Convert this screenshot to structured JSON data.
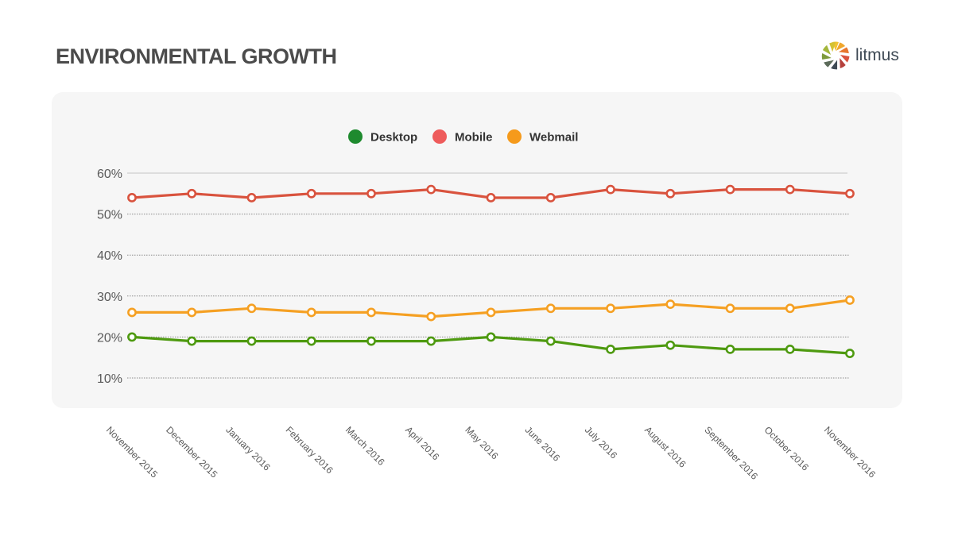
{
  "header": {
    "title": "ENVIRONMENTAL GROWTH"
  },
  "brand": {
    "name": "litmus",
    "logo_icon": "litmus-wheel-logo"
  },
  "chart_data": {
    "type": "line",
    "title": "ENVIRONMENTAL GROWTH",
    "xlabel": "",
    "ylabel": "",
    "ylim": [
      10,
      60
    ],
    "y_ticks": [
      "60%",
      "50%",
      "40%",
      "30%",
      "20%",
      "10%"
    ],
    "y_tick_values": [
      60,
      50,
      40,
      30,
      20,
      10
    ],
    "grid": true,
    "legend_position": "top-center",
    "categories": [
      "November 2015",
      "December 2015",
      "January 2016",
      "February 2016",
      "March 2016",
      "April 2016",
      "May 2016",
      "June 2016",
      "July 2016",
      "August 2016",
      "September 2016",
      "October 2016",
      "November 2016"
    ],
    "series": [
      {
        "name": "Desktop",
        "legend_color": "#1e8a2e",
        "line_color": "#4e9a10",
        "values": [
          20,
          19,
          19,
          19,
          19,
          19,
          20,
          19,
          17,
          18,
          17,
          17,
          16
        ]
      },
      {
        "name": "Mobile",
        "legend_color": "#ee5b5b",
        "line_color": "#d9533e",
        "values": [
          54,
          55,
          54,
          55,
          55,
          56,
          54,
          54,
          56,
          55,
          56,
          56,
          55
        ]
      },
      {
        "name": "Webmail",
        "legend_color": "#f59a1b",
        "line_color": "#f5a023",
        "values": [
          26,
          26,
          27,
          26,
          26,
          25,
          26,
          27,
          27,
          28,
          27,
          27,
          29
        ]
      }
    ]
  },
  "colors": {
    "panel_background": "#f6f6f6",
    "grid": "#9a9a9a",
    "text": "#5a5a5a"
  }
}
